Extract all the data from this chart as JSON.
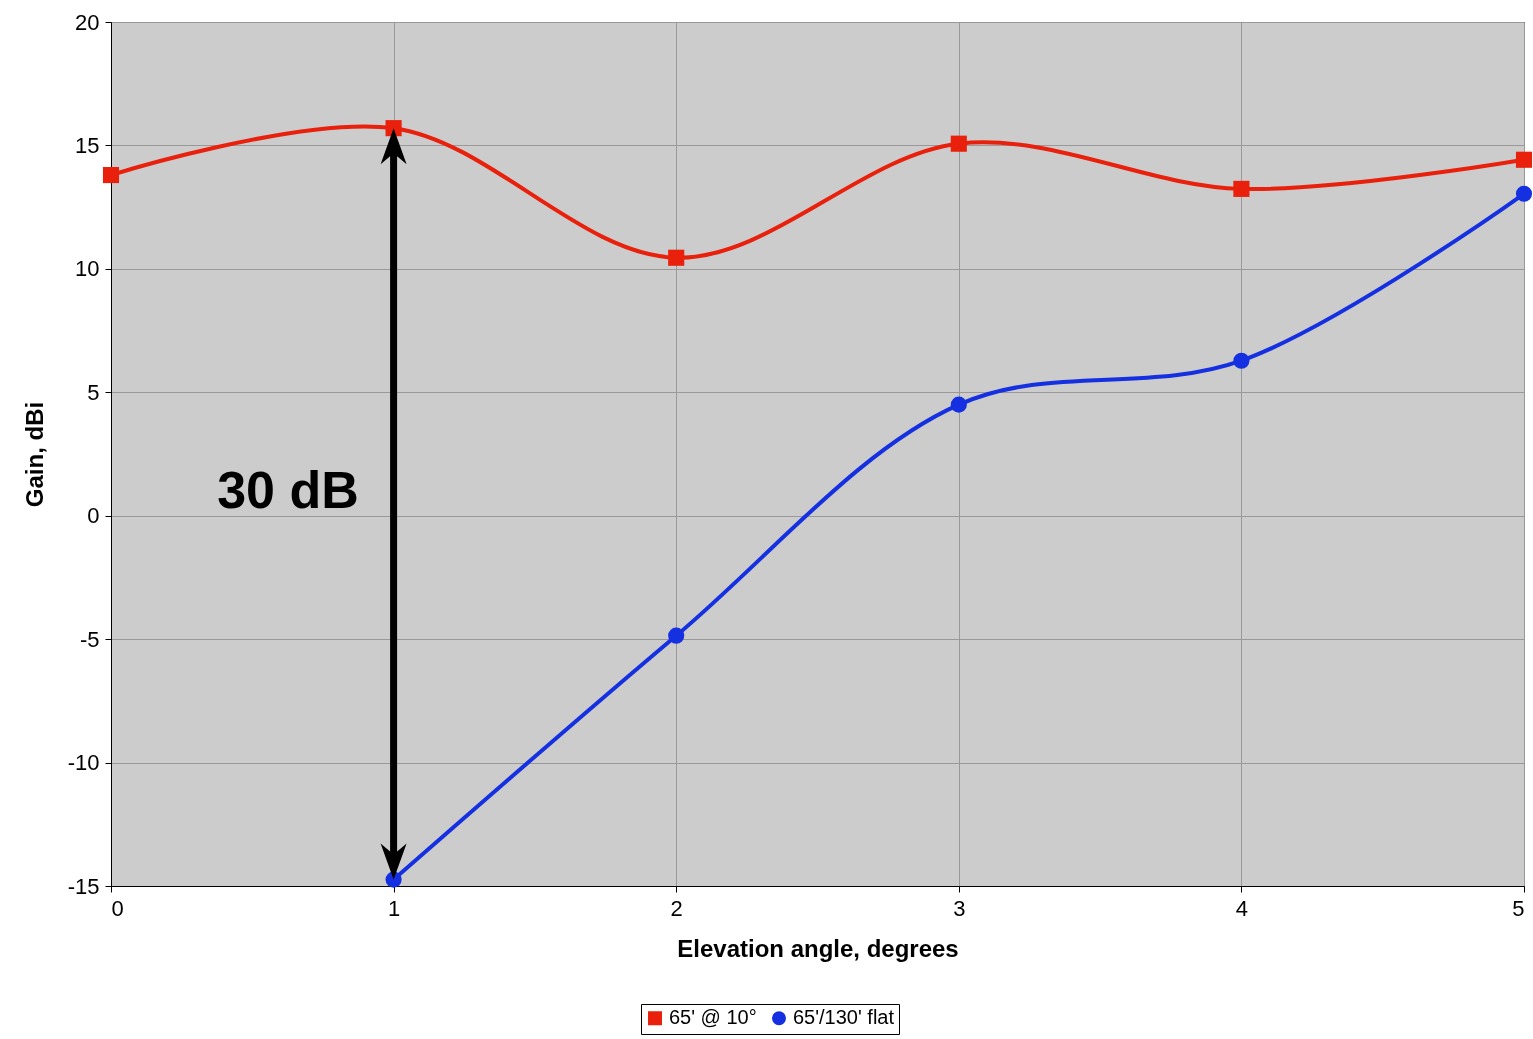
{
  "chart_data": {
    "type": "line",
    "xlabel": "Elevation angle, degrees",
    "ylabel": "Gain, dBi",
    "x": [
      0,
      1,
      2,
      3,
      4,
      5
    ],
    "series": [
      {
        "name": "65' @ 10°",
        "color": "#e8200c",
        "marker": "square",
        "values": [
          13.8,
          15.7,
          10.45,
          15.07,
          13.24,
          14.42
        ]
      },
      {
        "name": "65'/130' flat",
        "color": "#1530e0",
        "marker": "circle",
        "values": [
          null,
          -14.74,
          -4.86,
          4.5,
          6.28,
          13.04
        ]
      }
    ],
    "xlim": [
      0,
      5
    ],
    "xticks": [
      0,
      1,
      2,
      3,
      4,
      5
    ],
    "ylim": [
      -15,
      20
    ],
    "yticks": [
      -15,
      -10,
      -5,
      0,
      5,
      10,
      15,
      20
    ],
    "grid": true,
    "legend": "bottom",
    "line_style": "solid",
    "annotations": [
      "30 dB"
    ]
  }
}
